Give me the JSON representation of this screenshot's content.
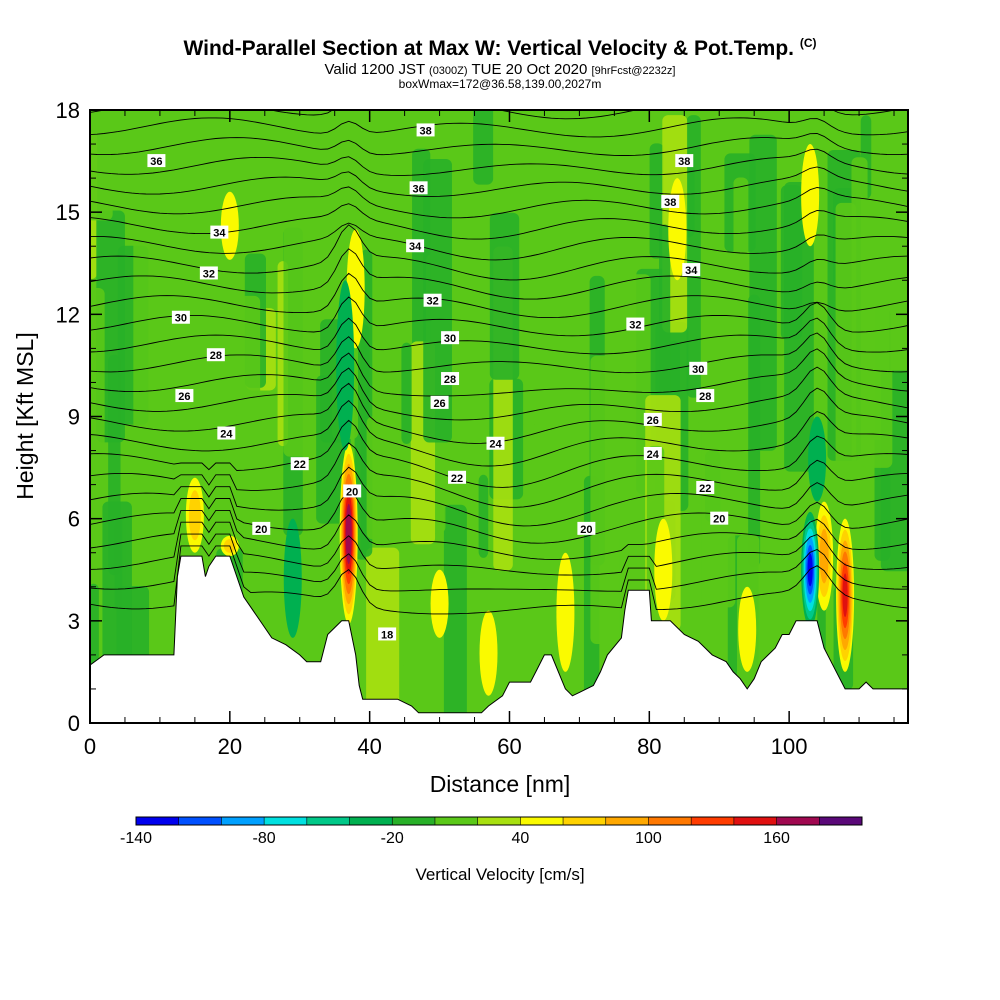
{
  "title": {
    "main": "Wind-Parallel Section at Max W: Vertical Velocity & Pot.Temp.",
    "copyright": "(C)",
    "valid_prefix": "Valid 1200 JST",
    "valid_utc": "(0300Z)",
    "valid_date": "TUE 20 Oct 2020",
    "forecast": "[9hrFcst@2232z]",
    "box_info": "boxWmax=172@36.58,139.00,2027m"
  },
  "chart_data": {
    "type": "heatmap",
    "xlabel": "Distance [nm]",
    "ylabel": "Height [Kft MSL]",
    "xlim": [
      0,
      117
    ],
    "ylim": [
      0,
      18
    ],
    "x_ticks": [
      0,
      20,
      40,
      60,
      80,
      100
    ],
    "y_ticks": [
      0,
      3,
      6,
      9,
      12,
      15,
      18
    ],
    "colorbar": {
      "title": "Vertical Velocity [cm/s]",
      "levels": [
        -140,
        -120,
        -100,
        -80,
        -60,
        -40,
        -20,
        0,
        20,
        40,
        60,
        80,
        100,
        120,
        140,
        160,
        180
      ],
      "colors": [
        "#0000ee",
        "#0050ff",
        "#00a0ff",
        "#00e0e0",
        "#00c888",
        "#00b050",
        "#28b028",
        "#5ac818",
        "#a8e010",
        "#fafa00",
        "#ffd200",
        "#ffa800",
        "#ff7800",
        "#ff3c00",
        "#e01010",
        "#a00850",
        "#5a0878"
      ],
      "labels": [
        -140,
        -80,
        -20,
        40,
        100,
        160
      ]
    },
    "theta_contour_labels": [
      {
        "value": 38,
        "x": 48,
        "y": 17.4
      },
      {
        "value": 36,
        "x": 9.5,
        "y": 16.5
      },
      {
        "value": 38,
        "x": 85,
        "y": 16.5
      },
      {
        "value": 36,
        "x": 47,
        "y": 15.7
      },
      {
        "value": 38,
        "x": 83,
        "y": 15.3
      },
      {
        "value": 34,
        "x": 18.5,
        "y": 14.4
      },
      {
        "value": 34,
        "x": 46.5,
        "y": 14.0
      },
      {
        "value": 32,
        "x": 17,
        "y": 13.2
      },
      {
        "value": 34,
        "x": 86,
        "y": 13.3
      },
      {
        "value": 32,
        "x": 49,
        "y": 12.4
      },
      {
        "value": 30,
        "x": 13,
        "y": 11.9
      },
      {
        "value": 32,
        "x": 78,
        "y": 11.7
      },
      {
        "value": 30,
        "x": 51.5,
        "y": 11.3
      },
      {
        "value": 28,
        "x": 18,
        "y": 10.8
      },
      {
        "value": 30,
        "x": 87,
        "y": 10.4
      },
      {
        "value": 28,
        "x": 51.5,
        "y": 10.1
      },
      {
        "value": 26,
        "x": 13.5,
        "y": 9.6
      },
      {
        "value": 28,
        "x": 88,
        "y": 9.6
      },
      {
        "value": 26,
        "x": 50,
        "y": 9.4
      },
      {
        "value": 26,
        "x": 80.5,
        "y": 8.9
      },
      {
        "value": 24,
        "x": 19.5,
        "y": 8.5
      },
      {
        "value": 24,
        "x": 58,
        "y": 8.2
      },
      {
        "value": 24,
        "x": 80.5,
        "y": 7.9
      },
      {
        "value": 22,
        "x": 30,
        "y": 7.6
      },
      {
        "value": 22,
        "x": 52.5,
        "y": 7.2
      },
      {
        "value": 20,
        "x": 37.5,
        "y": 6.8
      },
      {
        "value": 22,
        "x": 88,
        "y": 6.9
      },
      {
        "value": 20,
        "x": 90,
        "y": 6.0
      },
      {
        "value": 20,
        "x": 24.5,
        "y": 5.7
      },
      {
        "value": 20,
        "x": 71,
        "y": 5.7
      },
      {
        "value": 18,
        "x": 42.5,
        "y": 2.6
      }
    ],
    "terrain": [
      [
        0,
        1.7
      ],
      [
        2,
        2.0
      ],
      [
        12,
        2.0
      ],
      [
        12.5,
        4.3
      ],
      [
        13,
        4.9
      ],
      [
        16,
        4.9
      ],
      [
        16.5,
        4.3
      ],
      [
        17,
        4.6
      ],
      [
        18,
        4.9
      ],
      [
        20,
        4.9
      ],
      [
        21,
        4.3
      ],
      [
        22,
        3.7
      ],
      [
        23,
        3.4
      ],
      [
        24,
        3.1
      ],
      [
        25,
        2.8
      ],
      [
        26,
        2.5
      ],
      [
        28,
        2.3
      ],
      [
        30,
        2.0
      ],
      [
        31,
        1.8
      ],
      [
        33,
        1.8
      ],
      [
        34,
        2.6
      ],
      [
        35,
        2.8
      ],
      [
        36,
        3.0
      ],
      [
        37,
        3.0
      ],
      [
        38,
        2.0
      ],
      [
        38.5,
        1.1
      ],
      [
        39,
        0.7
      ],
      [
        44,
        0.7
      ],
      [
        46,
        0.5
      ],
      [
        47,
        0.3
      ],
      [
        56,
        0.3
      ],
      [
        57,
        0.5
      ],
      [
        59,
        0.8
      ],
      [
        60,
        1.2
      ],
      [
        63,
        1.2
      ],
      [
        64,
        1.6
      ],
      [
        65,
        2.0
      ],
      [
        66,
        2.0
      ],
      [
        67,
        1.5
      ],
      [
        68,
        1.0
      ],
      [
        69,
        0.8
      ],
      [
        70,
        0.9
      ],
      [
        72,
        1.1
      ],
      [
        73,
        1.5
      ],
      [
        74,
        2.0
      ],
      [
        76,
        2.5
      ],
      [
        76.5,
        3.3
      ],
      [
        77,
        3.9
      ],
      [
        80,
        3.9
      ],
      [
        80.3,
        3.0
      ],
      [
        83,
        3.0
      ],
      [
        85,
        2.6
      ],
      [
        87,
        2.4
      ],
      [
        89,
        2.0
      ],
      [
        91,
        1.8
      ],
      [
        92,
        1.5
      ],
      [
        93,
        1.3
      ],
      [
        94,
        1.0
      ],
      [
        95,
        1.3
      ],
      [
        96,
        1.8
      ],
      [
        97,
        2.0
      ],
      [
        98,
        2.2
      ],
      [
        99,
        2.6
      ],
      [
        100,
        2.6
      ],
      [
        101,
        3.0
      ],
      [
        104,
        3.0
      ],
      [
        104.5,
        2.6
      ],
      [
        105,
        2.2
      ],
      [
        106,
        1.8
      ],
      [
        107,
        1.4
      ],
      [
        108,
        1.0
      ],
      [
        110,
        1.0
      ],
      [
        111,
        1.2
      ],
      [
        112,
        1.0
      ],
      [
        117,
        1.0
      ]
    ],
    "updraft_cores": [
      {
        "x": 37,
        "top": 8.2,
        "bottom": 2.9,
        "peak": 172
      },
      {
        "x": 15,
        "top": 7.2,
        "bottom": 5.0,
        "peak": 60
      },
      {
        "x": 108,
        "top": 6.0,
        "bottom": 1.5,
        "peak": 140
      },
      {
        "x": 105,
        "top": 6.5,
        "bottom": 3.3,
        "peak": 80
      },
      {
        "x": 82,
        "top": 6.0,
        "bottom": 3.0,
        "peak": 50
      },
      {
        "x": 20,
        "top": 5.5,
        "bottom": 4.9,
        "peak": 60
      },
      {
        "x": 94,
        "top": 4.0,
        "bottom": 1.5,
        "peak": 40
      },
      {
        "x": 68,
        "top": 5.0,
        "bottom": 1.5,
        "peak": 40
      },
      {
        "x": 103,
        "top": 17.0,
        "bottom": 14.0,
        "peak": 45
      },
      {
        "x": 50,
        "top": 4.5,
        "bottom": 2.5,
        "peak": 40
      },
      {
        "x": 57,
        "top": 3.3,
        "bottom": 0.8,
        "peak": 40
      },
      {
        "x": 38,
        "top": 14.5,
        "bottom": 11.0,
        "peak": 40
      },
      {
        "x": 20,
        "top": 15.6,
        "bottom": 13.6,
        "peak": 40
      },
      {
        "x": 84,
        "top": 16.0,
        "bottom": 13.0,
        "peak": 40
      }
    ],
    "downdraft_cores": [
      {
        "x": 103,
        "top": 6.2,
        "bottom": 2.8,
        "peak": -140
      },
      {
        "x": 29,
        "top": 6.0,
        "bottom": 2.5,
        "peak": -40
      },
      {
        "x": 36.5,
        "top": 13.0,
        "bottom": 8.0,
        "peak": -40
      },
      {
        "x": 104,
        "top": 9.0,
        "bottom": 6.5,
        "peak": -40
      }
    ]
  }
}
